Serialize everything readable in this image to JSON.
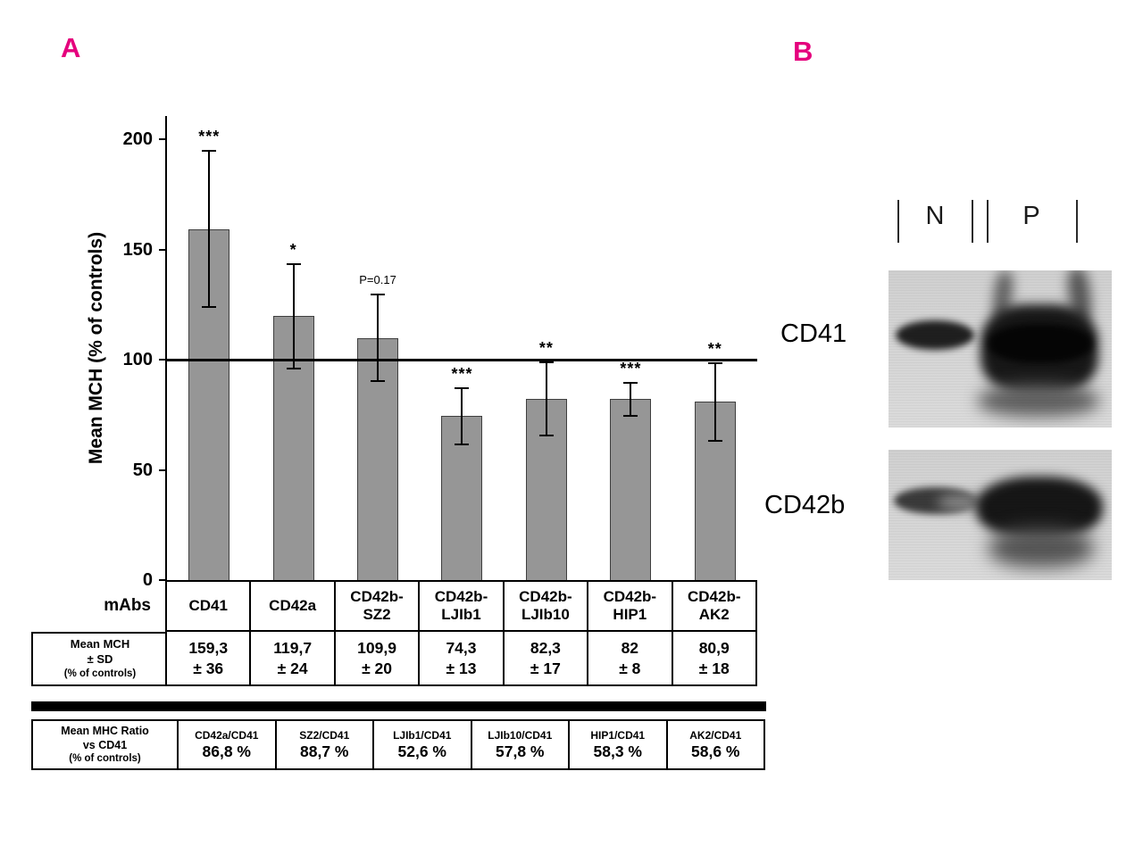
{
  "figure": {
    "accent_color": "#e5007d"
  },
  "panel_a": {
    "label": "A",
    "mean_header_lines": [
      "Mean MCH",
      "± SD",
      "(% of controls)"
    ]
  },
  "panel_b": {
    "label": "B",
    "lane_labels": [
      "N",
      "P"
    ],
    "blot_labels": [
      "CD41",
      "CD42b"
    ]
  },
  "chart_data": {
    "type": "bar",
    "title": "",
    "xlabel": "mAbs",
    "ylabel": "Mean MCH (% of controls)",
    "ylim": [
      0,
      200
    ],
    "y_ticks": [
      0,
      50,
      100,
      150,
      200
    ],
    "reference_line": 100,
    "bar_color": "#969696",
    "grid": false,
    "legend": false,
    "categories": [
      "CD41",
      "CD42a",
      "CD42b-SZ2",
      "CD42b-LJIb1",
      "CD42b-LJIb10",
      "CD42b-HIP1",
      "CD42b-AK2"
    ],
    "category_label_lines": [
      [
        "CD41"
      ],
      [
        "CD42a"
      ],
      [
        "CD42b-",
        "SZ2"
      ],
      [
        "CD42b-",
        "LJIb1"
      ],
      [
        "CD42b-",
        "LJIb10"
      ],
      [
        "CD42b-",
        "HIP1"
      ],
      [
        "CD42b-",
        "AK2"
      ]
    ],
    "values": [
      159.3,
      119.7,
      109.9,
      74.3,
      82.3,
      82,
      80.9
    ],
    "errors_sd": [
      36,
      24,
      20,
      13,
      17,
      8,
      18
    ],
    "significance": [
      "***",
      "*",
      "P=0.17",
      "***",
      "**",
      "***",
      "**"
    ],
    "value_labels": [
      "159,3",
      "119,7",
      "109,9",
      "74,3",
      "82,3",
      "82",
      "80,9"
    ],
    "sd_labels": [
      "± 36",
      "± 24",
      "± 20",
      "± 13",
      "± 17",
      "± 8",
      "± 18"
    ],
    "ratio_table": {
      "header_lines": [
        "Mean MHC Ratio",
        "vs CD41",
        "(% of controls)"
      ],
      "entries": [
        {
          "label": "CD42a/CD41",
          "value": "86,8 %"
        },
        {
          "label": "SZ2/CD41",
          "value": "88,7 %"
        },
        {
          "label": "LJIb1/CD41",
          "value": "52,6 %"
        },
        {
          "label": "LJIb10/CD41",
          "value": "57,8 %"
        },
        {
          "label": "HIP1/CD41",
          "value": "58,3 %"
        },
        {
          "label": "AK2/CD41",
          "value": "58,6 %"
        }
      ]
    }
  }
}
